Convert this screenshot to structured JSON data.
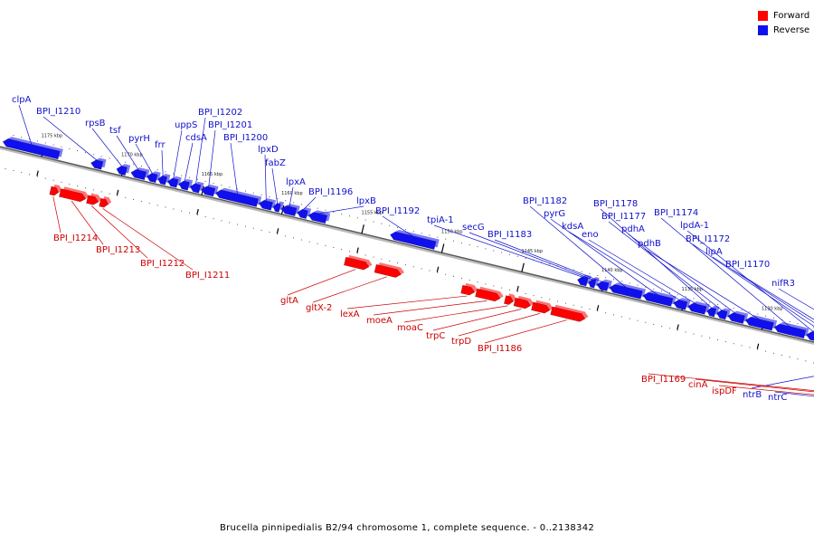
{
  "colors": {
    "forward": "#ff0000",
    "reverse": "#1010ee",
    "axis": "#888888",
    "forward_label": "#cc0000",
    "reverse_label": "#1010cc"
  },
  "legend": [
    {
      "label": "Forward",
      "color": "#ff0000"
    },
    {
      "label": "Reverse",
      "color": "#1010ee"
    }
  ],
  "caption": "Brucella pinnipedialis B2/94 chromosome 1, complete sequence. - 0..2138342",
  "ticks": [
    {
      "kbp": 1175,
      "label": "1175 kbp"
    },
    {
      "kbp": 1170,
      "label": "1170 kbp"
    },
    {
      "kbp": 1165,
      "label": "1165 kbp"
    },
    {
      "kbp": 1160,
      "label": "1160 kbp"
    },
    {
      "kbp": 1155,
      "label": "1155 kbp"
    },
    {
      "kbp": 1150,
      "label": "1150 kbp"
    },
    {
      "kbp": 1145,
      "label": "1145 kbp"
    },
    {
      "kbp": 1140,
      "label": "1140 kbp"
    },
    {
      "kbp": 1135,
      "label": "1135 kbp"
    },
    {
      "kbp": 1130,
      "label": "1130 kbp"
    },
    {
      "kbp": 1125,
      "label": "1125 kbp"
    }
  ],
  "reverse_genes": [
    {
      "name": "clpA",
      "start": 1174.0,
      "end": 1177.5
    },
    {
      "name": "BPI_I1210",
      "start": 1171.3,
      "end": 1172.0
    },
    {
      "name": "rpsB",
      "start": 1169.8,
      "end": 1170.4
    },
    {
      "name": "tsf",
      "start": 1168.6,
      "end": 1169.5
    },
    {
      "name": "pyrH",
      "start": 1167.9,
      "end": 1168.5
    },
    {
      "name": "frr",
      "start": 1167.3,
      "end": 1167.8
    },
    {
      "name": "uppS",
      "start": 1166.6,
      "end": 1167.2
    },
    {
      "name": "cdsA",
      "start": 1165.9,
      "end": 1166.5
    },
    {
      "name": "BPI_I1202",
      "start": 1165.2,
      "end": 1165.8
    },
    {
      "name": "BPI_I1201",
      "start": 1164.3,
      "end": 1165.1
    },
    {
      "name": "BPI_I1200",
      "start": 1161.6,
      "end": 1164.2
    },
    {
      "name": "lpxD",
      "start": 1160.7,
      "end": 1161.5
    },
    {
      "name": "fabZ",
      "start": 1160.2,
      "end": 1160.6
    },
    {
      "name": "lpxA",
      "start": 1159.2,
      "end": 1160.1
    },
    {
      "name": "BPI_I1196",
      "start": 1158.5,
      "end": 1159.1
    },
    {
      "name": "lpxB",
      "start": 1157.3,
      "end": 1158.4
    },
    {
      "name": "BPI_I1192",
      "start": 1150.5,
      "end": 1153.3
    },
    {
      "name": "tpiA-1",
      "start": 1141.0,
      "end": 1141.6
    },
    {
      "name": "secG",
      "start": 1140.5,
      "end": 1140.9
    },
    {
      "name": "BPI_I1183",
      "start": 1139.7,
      "end": 1140.4
    },
    {
      "name": "BPI_I1182",
      "start": 1137.6,
      "end": 1139.6
    },
    {
      "name": "pyrG",
      "start": 1135.7,
      "end": 1137.5
    },
    {
      "name": "kdsA",
      "start": 1134.8,
      "end": 1135.6
    },
    {
      "name": "eno",
      "start": 1133.6,
      "end": 1134.7
    },
    {
      "name": "BPI_I1178",
      "start": 1133.0,
      "end": 1133.5
    },
    {
      "name": "BPI_I1177",
      "start": 1132.3,
      "end": 1132.9
    },
    {
      "name": "pdhA",
      "start": 1131.2,
      "end": 1132.2
    },
    {
      "name": "pdhB",
      "start": 1129.4,
      "end": 1131.1
    },
    {
      "name": "BPI_I1174",
      "start": 1127.4,
      "end": 1129.3
    },
    {
      "name": "lpdA-1",
      "start": 1126.3,
      "end": 1127.3
    },
    {
      "name": "BPI_I1172",
      "start": 1125.7,
      "end": 1126.2
    },
    {
      "name": "lipA",
      "start": 1125.0,
      "end": 1125.6
    },
    {
      "name": "BPI_I1170",
      "start": 1124.4,
      "end": 1124.9
    },
    {
      "name": "nifR3",
      "start": 1121.9,
      "end": 1123.4
    },
    {
      "name": "ntrB",
      "start": 1119.4,
      "end": 1121.8
    }
  ],
  "forward_genes": [
    {
      "name": "BPI_I1214",
      "start": 1173.5,
      "end": 1174.0
    },
    {
      "name": "BPI_I1213",
      "start": 1171.8,
      "end": 1173.4
    },
    {
      "name": "BPI_I1212",
      "start": 1171.0,
      "end": 1171.7
    },
    {
      "name": "BPI_I1211",
      "start": 1170.4,
      "end": 1170.9
    },
    {
      "name": "gltA",
      "start": 1154.1,
      "end": 1155.6
    },
    {
      "name": "gltX-2",
      "start": 1152.1,
      "end": 1153.7
    },
    {
      "name": "lexA",
      "start": 1147.5,
      "end": 1148.3
    },
    {
      "name": "moeA",
      "start": 1145.9,
      "end": 1147.4
    },
    {
      "name": "moaC",
      "start": 1145.1,
      "end": 1145.6
    },
    {
      "name": "trpC",
      "start": 1144.0,
      "end": 1145.0
    },
    {
      "name": "trpD",
      "start": 1142.8,
      "end": 1143.9
    },
    {
      "name": "BPI_I1186",
      "start": 1140.6,
      "end": 1142.7
    },
    {
      "name": "BPI_I1169",
      "start": 1120.7,
      "end": 1121.5
    },
    {
      "name": "cinA",
      "start": 1120.2,
      "end": 1120.6
    },
    {
      "name": "ispDF",
      "start": 1118.9,
      "end": 1120.1
    },
    {
      "name": "ntrC",
      "start": 1117.3,
      "end": 1118.2
    }
  ]
}
